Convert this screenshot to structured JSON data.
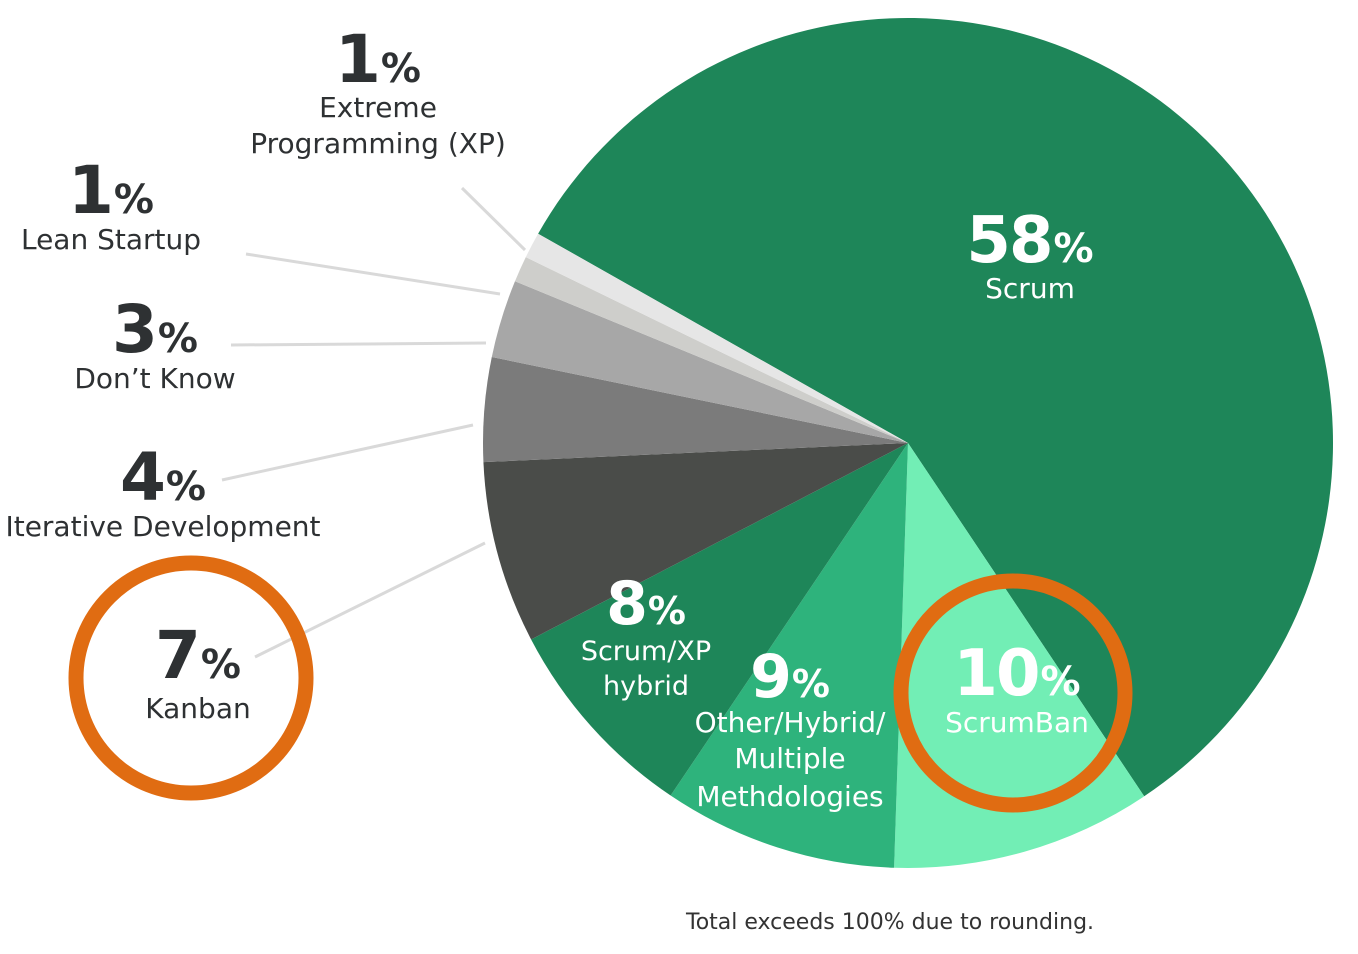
{
  "chart_data": {
    "type": "pie",
    "title": "",
    "percent_symbol": "%",
    "slices": [
      {
        "name": "Scrum",
        "value_label": "58",
        "value": 58,
        "color": "#1e8659",
        "text_color": "#ffffff",
        "highlighted": false
      },
      {
        "name": "ScrumBan",
        "value_label": "10",
        "value": 10,
        "color": "#72eeb5",
        "text_color": "#ffffff",
        "highlighted": true
      },
      {
        "name": "Other/Hybrid/ Multiple Methdologies",
        "value_label": "9",
        "value": 9,
        "color": "#2eb37c",
        "text_color": "#ffffff",
        "highlighted": false
      },
      {
        "name": "Scrum/XP hybrid",
        "value_label": "8",
        "value": 8,
        "color": "#1e8659",
        "text_color": "#ffffff",
        "highlighted": false
      },
      {
        "name": "Kanban",
        "value_label": "7",
        "value": 7,
        "color": "#4a4c49",
        "text_color": "#2e3133",
        "highlighted": true
      },
      {
        "name": "Iterative Development",
        "value_label": "4",
        "value": 4,
        "color": "#7b7b7b",
        "text_color": "#2e3133",
        "highlighted": false
      },
      {
        "name": "Don’t Know",
        "value_label": "3",
        "value": 3,
        "color": "#a7a7a7",
        "text_color": "#2e3133",
        "highlighted": false
      },
      {
        "name": "Lean Startup",
        "value_label": "1",
        "value": 1,
        "color": "#cececb",
        "text_color": "#2e3133",
        "highlighted": false
      },
      {
        "name": "Extreme Programming (XP)",
        "value_label": "1",
        "value": 1,
        "color": "#e6e6e6",
        "text_color": "#2e3133",
        "highlighted": false
      }
    ],
    "highlight_color": "#e06c12",
    "footnote": "Total exceeds 100% due to rounding."
  }
}
